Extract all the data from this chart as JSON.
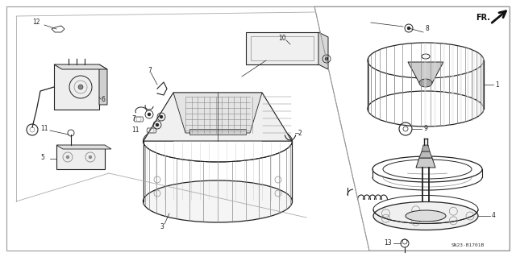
{
  "bg_color": "#ffffff",
  "line_color": "#222222",
  "gray": "#888888",
  "lgray": "#bbbbbb",
  "dgray": "#444444",
  "fig_width": 6.4,
  "fig_height": 3.19,
  "dpi": 100,
  "diagram_code": "SN23-B1701B",
  "fr_label": "FR.",
  "border_lw": 0.8
}
